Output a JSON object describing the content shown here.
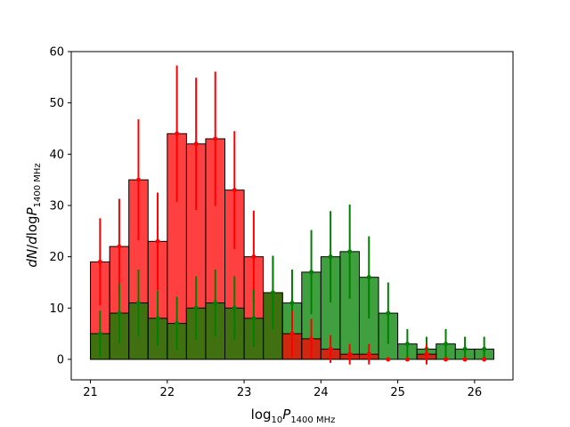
{
  "chart_data": {
    "type": "bar",
    "xlabel_parts": {
      "log": "log",
      "sub10": "10",
      "P": "P",
      "sub": "1400 MHz"
    },
    "ylabel_parts": {
      "dN": "dN",
      "slash": "/",
      "d": "d",
      "log": "log",
      "P": "P",
      "sub": "1400 MHz"
    },
    "xlim": [
      20.75,
      26.5
    ],
    "ylim": [
      -4,
      60
    ],
    "xticks": [
      21,
      22,
      23,
      24,
      25,
      26
    ],
    "yticks": [
      0,
      10,
      20,
      30,
      40,
      50,
      60
    ],
    "bin_edges": [
      21.0,
      21.25,
      21.5,
      21.75,
      22.0,
      22.25,
      22.5,
      22.75,
      23.0,
      23.25,
      23.5,
      23.75,
      24.0,
      24.25,
      24.5,
      24.75,
      25.0,
      25.25,
      25.5,
      25.75,
      26.0,
      26.25
    ],
    "series": [
      {
        "color": "#ff0000",
        "fill_alpha": 0.75,
        "values": [
          19,
          22,
          35,
          23,
          44,
          42,
          43,
          33,
          20,
          13,
          0,
          0,
          0,
          0,
          0,
          0,
          0,
          0,
          0,
          0,
          0
        ],
        "errors": [
          8.5,
          9.3,
          11.8,
          9.5,
          13.3,
          12.9,
          13.1,
          11.5,
          9.0,
          7.2,
          0,
          0,
          0,
          0,
          0,
          0,
          0,
          0,
          0,
          0,
          0
        ]
      },
      {
        "color": "#008000",
        "fill_alpha": 0.75,
        "values": [
          5,
          9,
          11,
          8,
          7,
          10,
          11,
          10,
          8,
          13,
          11,
          17,
          20,
          21,
          16,
          9,
          3,
          2,
          3,
          2,
          2
        ],
        "errors": [
          4.5,
          5.8,
          6.5,
          5.4,
          5.2,
          6.2,
          6.5,
          6.2,
          5.6,
          7.2,
          6.5,
          8.2,
          8.9,
          9.2,
          8.0,
          6.0,
          2.9,
          2.4,
          2.9,
          2.4,
          2.4
        ]
      },
      {
        "color": "#ff0000",
        "fill_alpha": 0.75,
        "values": [
          0,
          0,
          0,
          0,
          0,
          0,
          0,
          0,
          0,
          0,
          5,
          4,
          2,
          1,
          1,
          0,
          0,
          1,
          0,
          0,
          0
        ],
        "errors": [
          0,
          0,
          0,
          0,
          0,
          0,
          0,
          0,
          0,
          0,
          4.5,
          3.9,
          2.7,
          2.0,
          2.0,
          0,
          0,
          2.0,
          0,
          0,
          0
        ]
      }
    ]
  }
}
